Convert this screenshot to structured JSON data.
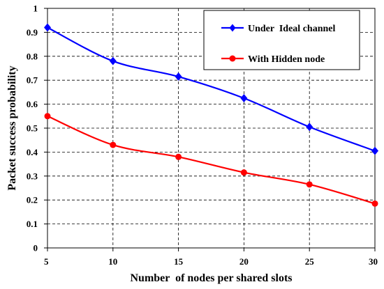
{
  "chart_data": {
    "type": "line",
    "title": "",
    "xlabel": "Number  of nodes per shared slots",
    "ylabel": "Packet success probability",
    "x": [
      5,
      10,
      15,
      20,
      25,
      30
    ],
    "xticks": [
      "5",
      "10",
      "15",
      "20",
      "25",
      "30"
    ],
    "yticks": [
      "0",
      "0.1",
      "0.2",
      "0.3",
      "0.4",
      "0.5",
      "0.6",
      "0.7",
      "0.8",
      "0.9",
      "1"
    ],
    "xlim": [
      5,
      30
    ],
    "ylim": [
      0,
      1
    ],
    "grid": true,
    "legend_position": "top-right",
    "series": [
      {
        "name": "Under  Ideal channel",
        "values": [
          0.92,
          0.78,
          0.715,
          0.625,
          0.505,
          0.405
        ],
        "color": "#0000ff",
        "marker": "diamond"
      },
      {
        "name": "With Hidden node",
        "values": [
          0.55,
          0.43,
          0.38,
          0.315,
          0.265,
          0.185
        ],
        "color": "#ff0000",
        "marker": "circle"
      }
    ]
  }
}
